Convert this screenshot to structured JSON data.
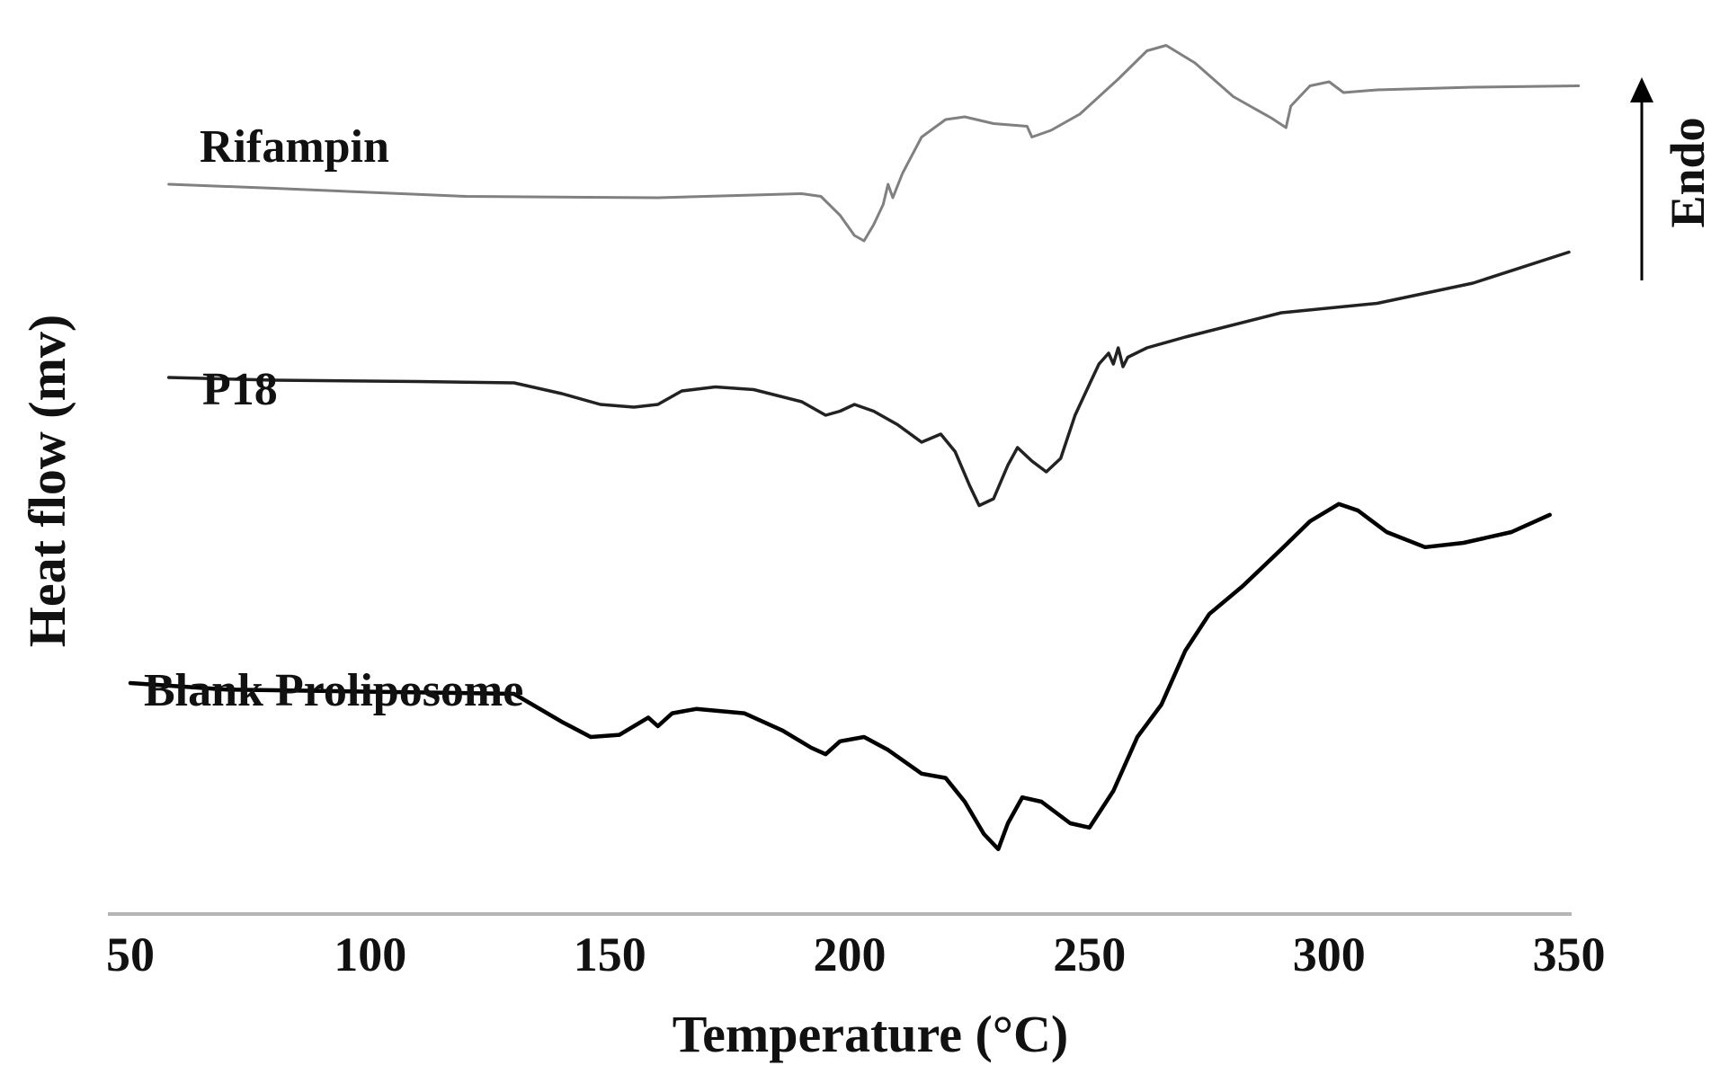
{
  "chart_data": {
    "type": "line",
    "title": "",
    "xlabel": "Temperature (°C)",
    "ylabel": "Heat flow (mv)",
    "xlim": [
      50,
      350
    ],
    "xticks": [
      "50",
      "100",
      "150",
      "200",
      "250",
      "300",
      "350"
    ],
    "yticks_visible": false,
    "grid": false,
    "legend": "inline labels",
    "annotation": {
      "label": "Endo",
      "direction": "up"
    },
    "series": [
      {
        "name": "Rifampin",
        "color": "#808080",
        "points": [
          [
            58,
            0.2
          ],
          [
            80,
            0.17
          ],
          [
            120,
            0.11
          ],
          [
            160,
            0.1
          ],
          [
            180,
            0.12
          ],
          [
            190,
            0.13
          ],
          [
            194,
            0.11
          ],
          [
            198,
            -0.03
          ],
          [
            201,
            -0.18
          ],
          [
            203,
            -0.22
          ],
          [
            205,
            -0.1
          ],
          [
            207,
            0.05
          ],
          [
            208,
            0.2
          ],
          [
            209,
            0.1
          ],
          [
            211,
            0.28
          ],
          [
            215,
            0.55
          ],
          [
            220,
            0.68
          ],
          [
            224,
            0.7
          ],
          [
            230,
            0.65
          ],
          [
            237,
            0.63
          ],
          [
            238,
            0.55
          ],
          [
            242,
            0.6
          ],
          [
            248,
            0.72
          ],
          [
            256,
            0.98
          ],
          [
            262,
            1.19
          ],
          [
            266,
            1.23
          ],
          [
            272,
            1.1
          ],
          [
            280,
            0.85
          ],
          [
            288,
            0.69
          ],
          [
            291,
            0.62
          ],
          [
            292,
            0.78
          ],
          [
            296,
            0.93
          ],
          [
            300,
            0.96
          ],
          [
            303,
            0.88
          ],
          [
            310,
            0.9
          ],
          [
            330,
            0.92
          ],
          [
            352,
            0.93
          ]
        ]
      },
      {
        "name": "P18",
        "color": "#222222",
        "points": [
          [
            58,
            0.4
          ],
          [
            80,
            0.38
          ],
          [
            110,
            0.37
          ],
          [
            130,
            0.36
          ],
          [
            140,
            0.28
          ],
          [
            148,
            0.2
          ],
          [
            155,
            0.18
          ],
          [
            160,
            0.2
          ],
          [
            165,
            0.3
          ],
          [
            172,
            0.33
          ],
          [
            180,
            0.31
          ],
          [
            190,
            0.22
          ],
          [
            195,
            0.12
          ],
          [
            198,
            0.15
          ],
          [
            201,
            0.2
          ],
          [
            205,
            0.15
          ],
          [
            210,
            0.05
          ],
          [
            215,
            -0.08
          ],
          [
            219,
            -0.02
          ],
          [
            222,
            -0.15
          ],
          [
            225,
            -0.4
          ],
          [
            227,
            -0.55
          ],
          [
            230,
            -0.5
          ],
          [
            233,
            -0.25
          ],
          [
            235,
            -0.12
          ],
          [
            238,
            -0.22
          ],
          [
            241,
            -0.3
          ],
          [
            244,
            -0.2
          ],
          [
            247,
            0.12
          ],
          [
            250,
            0.35
          ],
          [
            252,
            0.5
          ],
          [
            254,
            0.58
          ],
          [
            255,
            0.5
          ],
          [
            256,
            0.62
          ],
          [
            257,
            0.48
          ],
          [
            258,
            0.55
          ],
          [
            262,
            0.62
          ],
          [
            270,
            0.7
          ],
          [
            290,
            0.88
          ],
          [
            310,
            0.95
          ],
          [
            330,
            1.1
          ],
          [
            350,
            1.33
          ]
        ]
      },
      {
        "name": "Blank Proliposome",
        "color": "#000000",
        "points": [
          [
            50,
            0.3
          ],
          [
            70,
            0.27
          ],
          [
            100,
            0.26
          ],
          [
            130,
            0.25
          ],
          [
            140,
            0.12
          ],
          [
            146,
            0.05
          ],
          [
            152,
            0.06
          ],
          [
            158,
            0.14
          ],
          [
            160,
            0.1
          ],
          [
            163,
            0.16
          ],
          [
            168,
            0.18
          ],
          [
            178,
            0.16
          ],
          [
            186,
            0.08
          ],
          [
            192,
            0.0
          ],
          [
            195,
            -0.03
          ],
          [
            198,
            0.03
          ],
          [
            203,
            0.05
          ],
          [
            208,
            -0.01
          ],
          [
            215,
            -0.12
          ],
          [
            220,
            -0.14
          ],
          [
            224,
            -0.25
          ],
          [
            228,
            -0.4
          ],
          [
            231,
            -0.47
          ],
          [
            233,
            -0.35
          ],
          [
            236,
            -0.23
          ],
          [
            240,
            -0.25
          ],
          [
            246,
            -0.35
          ],
          [
            250,
            -0.37
          ],
          [
            255,
            -0.2
          ],
          [
            260,
            0.05
          ],
          [
            265,
            0.2
          ],
          [
            270,
            0.45
          ],
          [
            275,
            0.62
          ],
          [
            282,
            0.75
          ],
          [
            290,
            0.92
          ],
          [
            296,
            1.05
          ],
          [
            302,
            1.13
          ],
          [
            306,
            1.1
          ],
          [
            312,
            1.0
          ],
          [
            320,
            0.93
          ],
          [
            328,
            0.95
          ],
          [
            338,
            1.0
          ],
          [
            346,
            1.08
          ]
        ]
      }
    ]
  }
}
